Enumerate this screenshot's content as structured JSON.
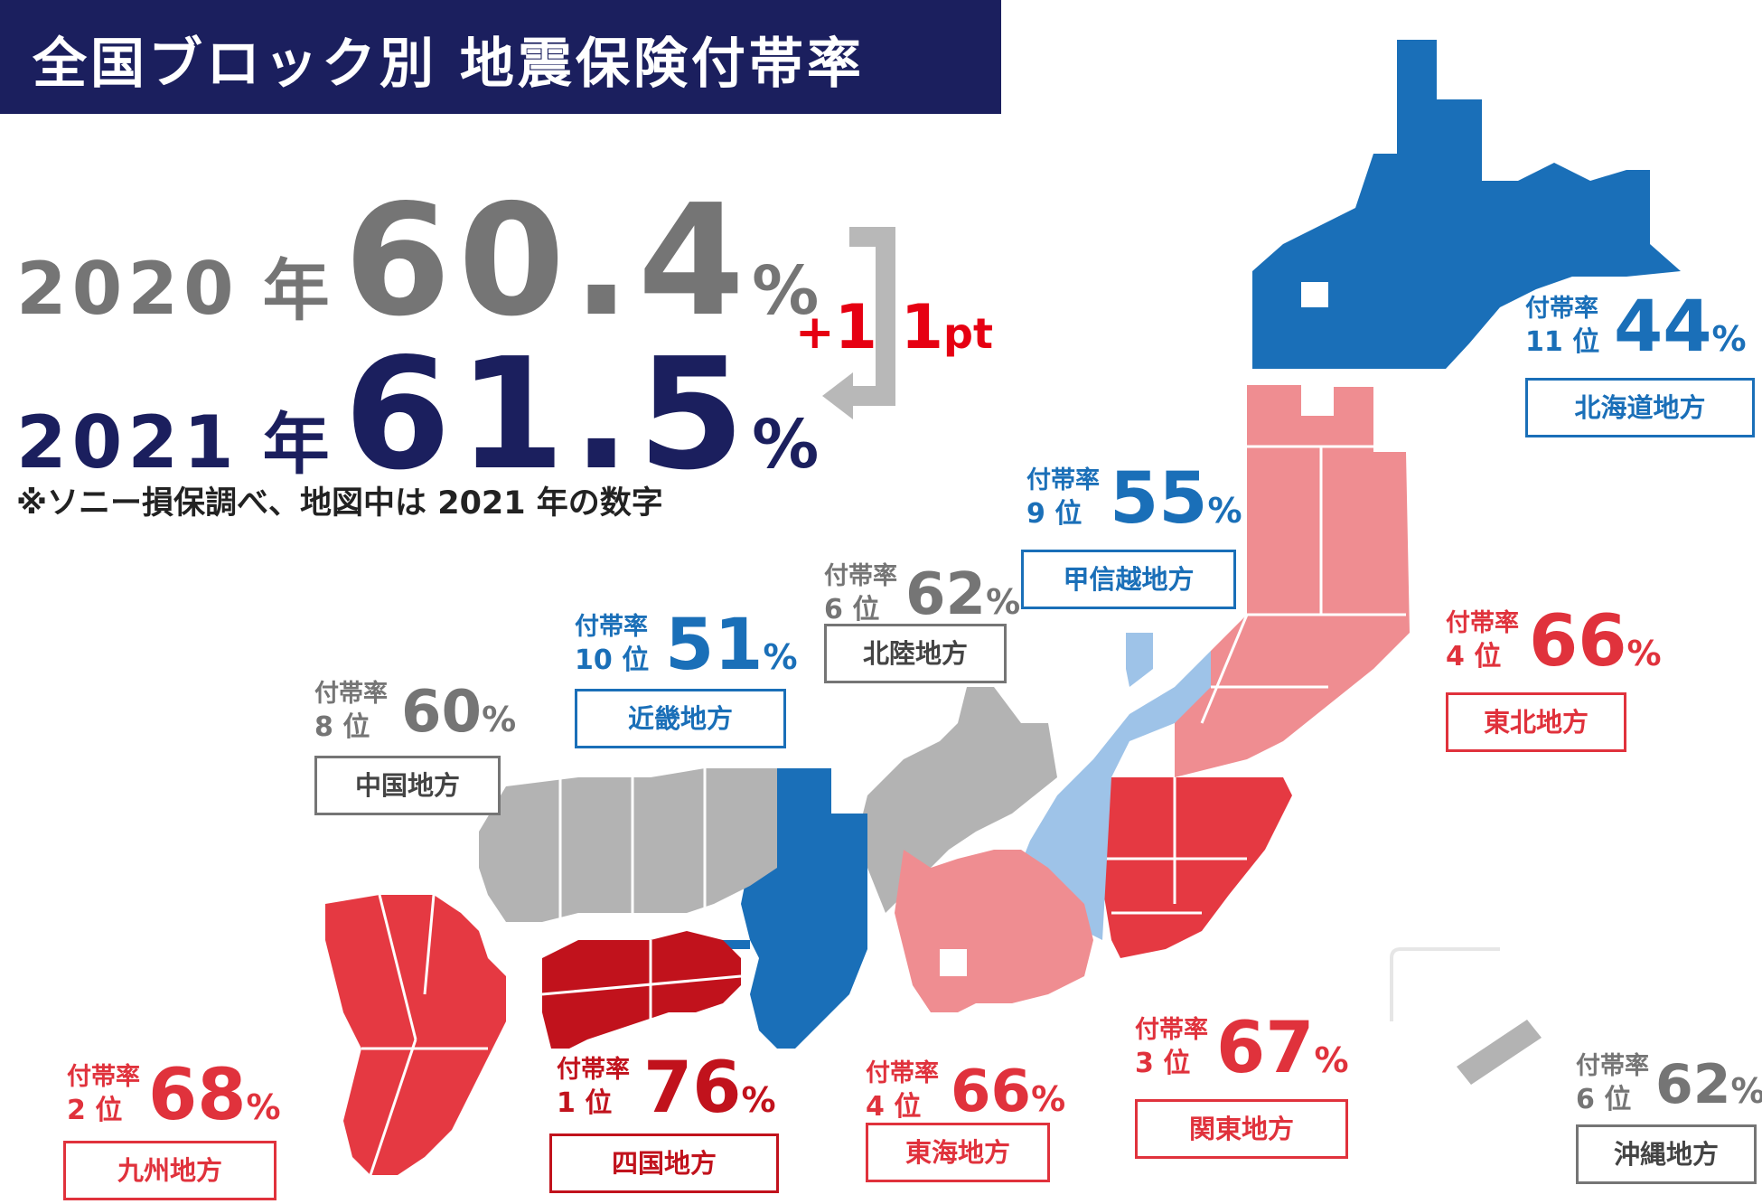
{
  "title": "全国ブロック別 地震保険付帯率",
  "y2020": {
    "year": "2020",
    "nen": "年",
    "value": "60.4",
    "pct": "%"
  },
  "y2021": {
    "year": "2021",
    "nen": "年",
    "value": "61.5",
    "pct": "%"
  },
  "delta": {
    "plus": "+",
    "num": "1.1",
    "unit": "pt"
  },
  "note": "※ソニー損保調べ、地図中は 2021 年の数字",
  "colors": {
    "navy": "#1b1f5e",
    "blue": "#1a6fb8",
    "light_blue": "#9ec3e8",
    "gray": "#b3b3b3",
    "pink": "#ef8d91",
    "red": "#e53942",
    "dark_red": "#c1121c",
    "text_gray": "#757575"
  },
  "regions": [
    {
      "name": "北海道地方",
      "rank_label": "付帯率",
      "rank": "11 位",
      "value": "44",
      "pct": "%"
    },
    {
      "name": "東北地方",
      "rank_label": "付帯率",
      "rank": "4 位",
      "value": "66",
      "pct": "%"
    },
    {
      "name": "関東地方",
      "rank_label": "付帯率",
      "rank": "3 位",
      "value": "67",
      "pct": "%"
    },
    {
      "name": "甲信越地方",
      "rank_label": "付帯率",
      "rank": "9 位",
      "value": "55",
      "pct": "%"
    },
    {
      "name": "北陸地方",
      "rank_label": "付帯率",
      "rank": "6 位",
      "value": "62",
      "pct": "%"
    },
    {
      "name": "東海地方",
      "rank_label": "付帯率",
      "rank": "4 位",
      "value": "66",
      "pct": "%"
    },
    {
      "name": "近畿地方",
      "rank_label": "付帯率",
      "rank": "10 位",
      "value": "51",
      "pct": "%"
    },
    {
      "name": "中国地方",
      "rank_label": "付帯率",
      "rank": "8 位",
      "value": "60",
      "pct": "%"
    },
    {
      "name": "四国地方",
      "rank_label": "付帯率",
      "rank": "1 位",
      "value": "76",
      "pct": "%"
    },
    {
      "name": "九州地方",
      "rank_label": "付帯率",
      "rank": "2 位",
      "value": "68",
      "pct": "%"
    },
    {
      "name": "沖縄地方",
      "rank_label": "付帯率",
      "rank": "6 位",
      "value": "62",
      "pct": "%"
    }
  ]
}
